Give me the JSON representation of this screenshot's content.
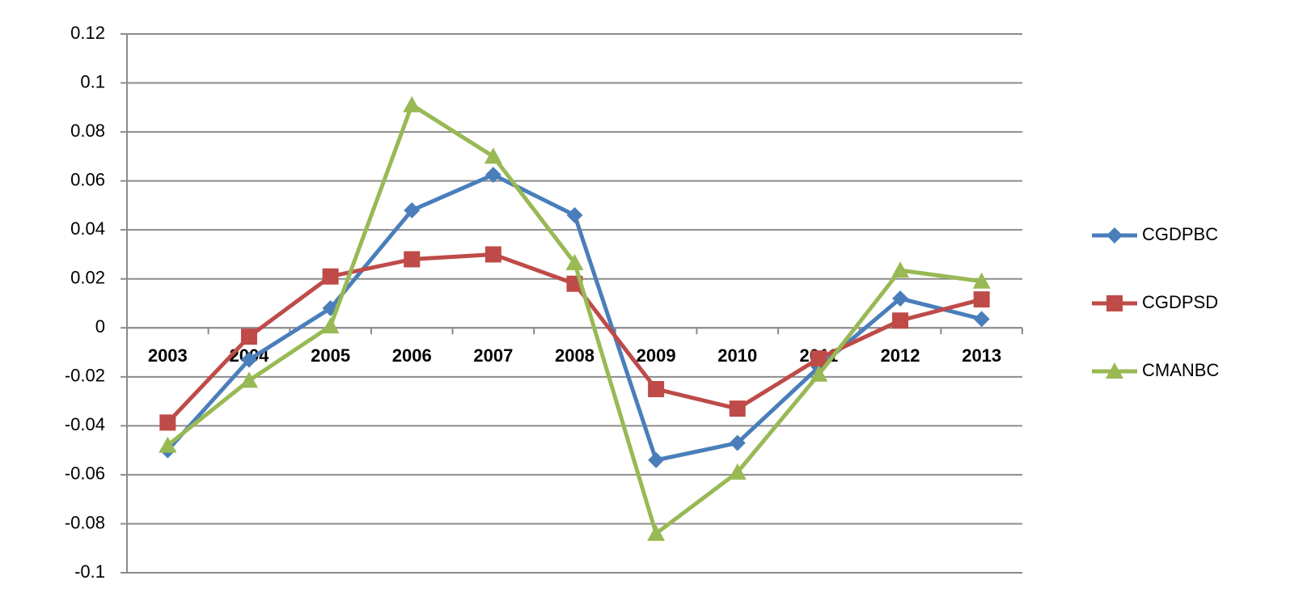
{
  "chart_data": {
    "type": "line",
    "categories": [
      "2003",
      "2004",
      "2005",
      "2006",
      "2007",
      "2008",
      "2009",
      "2010",
      "2011",
      "2012",
      "2013"
    ],
    "series": [
      {
        "name": "CGDPBC",
        "color": "#4a7ebb",
        "marker": "diamond",
        "values": [
          -0.05,
          -0.013,
          0.008,
          0.048,
          0.0625,
          0.046,
          -0.054,
          -0.047,
          -0.016,
          0.012,
          0.0036
        ]
      },
      {
        "name": "CGDPSD",
        "color": "#be4b48",
        "marker": "square",
        "values": [
          -0.0387,
          -0.0036,
          0.021,
          0.028,
          0.03,
          0.018,
          -0.025,
          -0.033,
          -0.0125,
          0.003,
          0.0116
        ]
      },
      {
        "name": "CMANBC",
        "color": "#98b954",
        "marker": "triangle",
        "values": [
          -0.048,
          -0.0215,
          0.0007,
          0.091,
          0.07,
          0.0265,
          -0.084,
          -0.059,
          -0.019,
          0.0235,
          0.019
        ]
      }
    ],
    "ylim": [
      -0.1,
      0.12
    ],
    "yticks": [
      -0.1,
      -0.08,
      -0.06,
      -0.04,
      -0.02,
      0,
      0.02,
      0.04,
      0.06,
      0.08,
      0.1,
      0.12
    ],
    "grid": true,
    "legend": "right"
  }
}
